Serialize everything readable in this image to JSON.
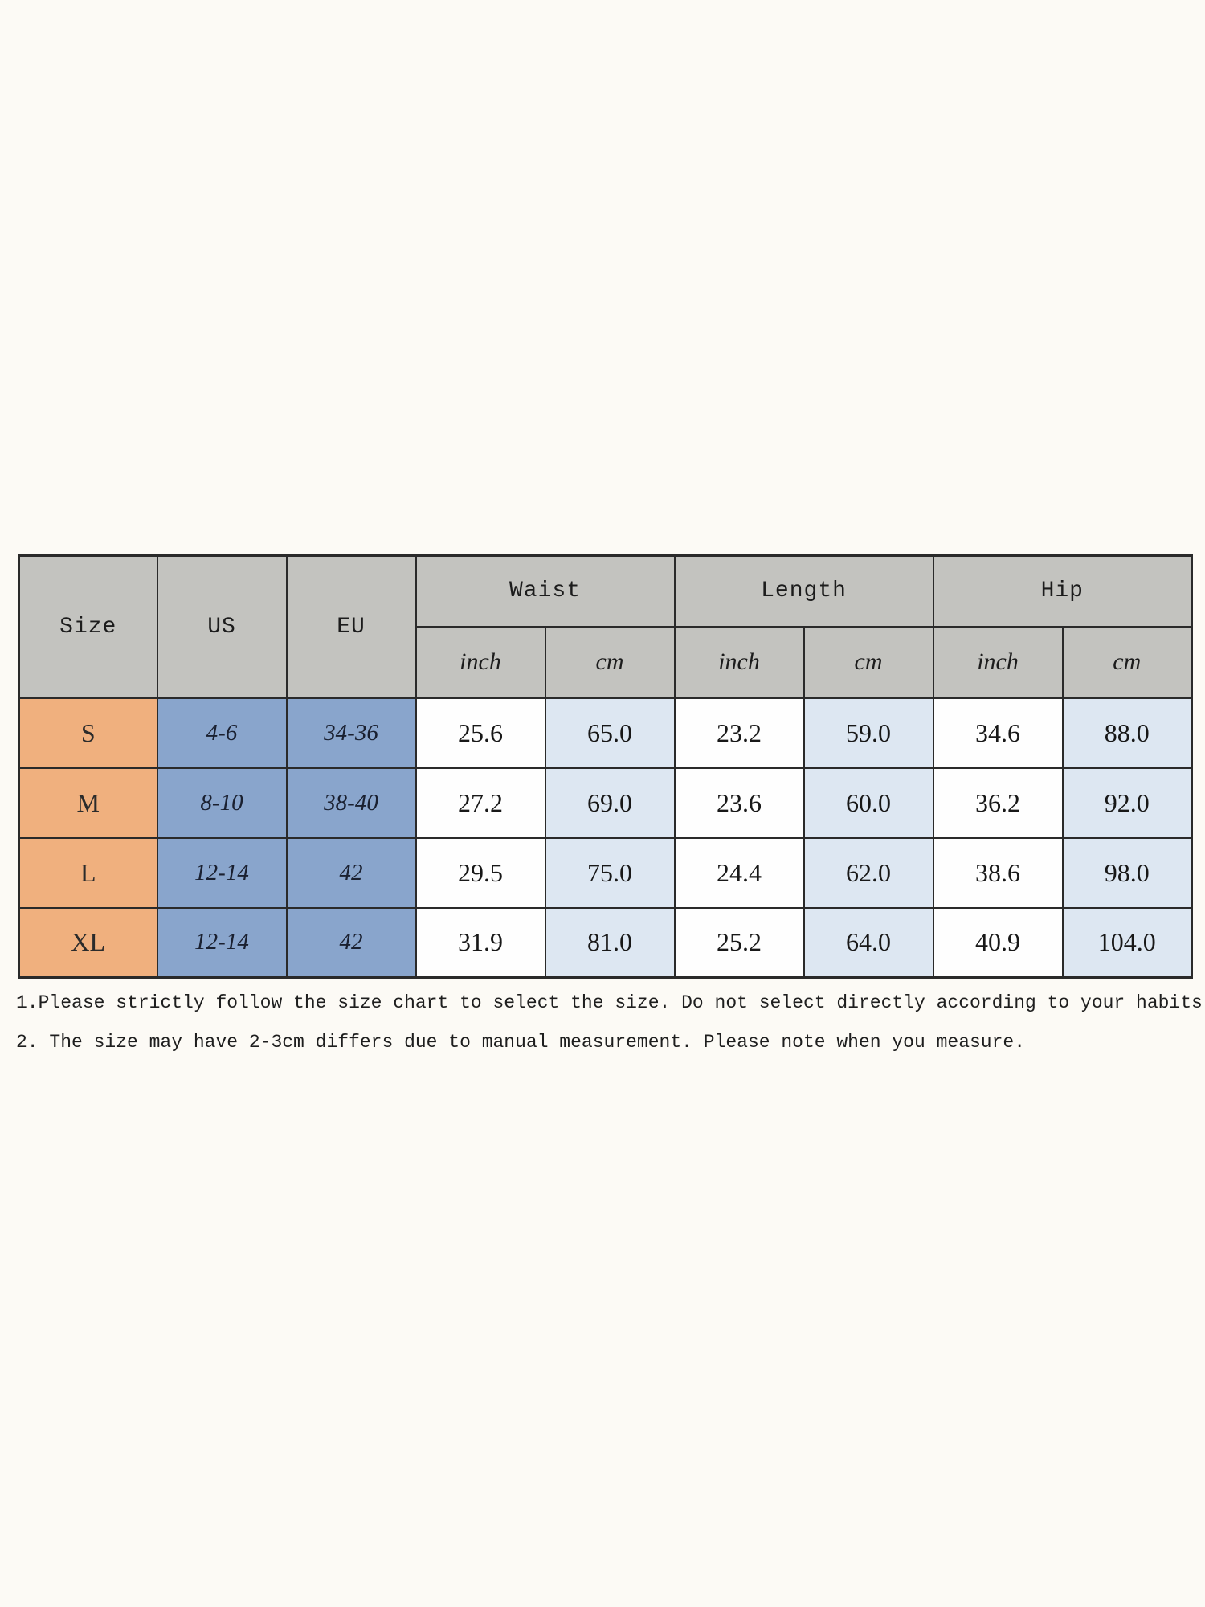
{
  "page": {
    "background_color": "#FCFAF5"
  },
  "size_chart": {
    "header": {
      "size": "Size",
      "us": "US",
      "eu": "EU",
      "waist": "Waist",
      "length": "Length",
      "hip": "Hip",
      "inch": "inch",
      "cm": "cm"
    },
    "rows": [
      {
        "size": "S",
        "us": "4-6",
        "eu": "34-36",
        "waist_inch": "25.6",
        "waist_cm": "65.0",
        "length_inch": "23.2",
        "length_cm": "59.0",
        "hip_inch": "34.6",
        "hip_cm": "88.0"
      },
      {
        "size": "M",
        "us": "8-10",
        "eu": "38-40",
        "waist_inch": "27.2",
        "waist_cm": "69.0",
        "length_inch": "23.6",
        "length_cm": "60.0",
        "hip_inch": "36.2",
        "hip_cm": "92.0"
      },
      {
        "size": "L",
        "us": "12-14",
        "eu": "42",
        "waist_inch": "29.5",
        "waist_cm": "75.0",
        "length_inch": "24.4",
        "length_cm": "62.0",
        "hip_inch": "38.6",
        "hip_cm": "98.0"
      },
      {
        "size": "XL",
        "us": "12-14",
        "eu": "42",
        "waist_inch": "31.9",
        "waist_cm": "81.0",
        "length_inch": "25.2",
        "length_cm": "64.0",
        "hip_inch": "40.9",
        "hip_cm": "104.0"
      }
    ],
    "colors": {
      "header_bg": "#C3C3BF",
      "size_column_bg": "#F0B07E",
      "us_eu_column_bg": "#89A5CC",
      "inch_column_bg": "#FEFEFE",
      "cm_column_bg": "#DDE7F2",
      "border": "#2A2A2A"
    }
  },
  "notes": [
    "1.Please strictly follow the size chart to select the size. Do not select directly according to your habits.",
    "2. The size may have 2-3cm differs due to manual measurement. Please note when you measure."
  ]
}
